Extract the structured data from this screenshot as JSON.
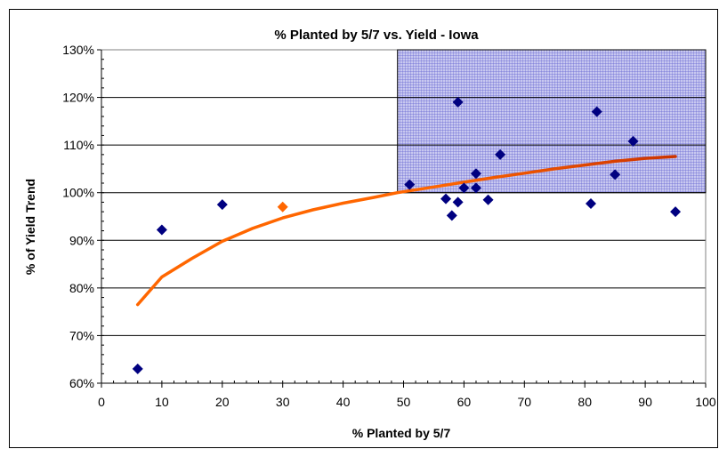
{
  "chart_data": {
    "type": "scatter",
    "title": "% Planted by 5/7 vs. Yield - Iowa",
    "xlabel": "% Planted by 5/7",
    "ylabel": "% of Yield Trend",
    "xlim": [
      0,
      100
    ],
    "ylim": [
      0.6,
      1.3
    ],
    "x_ticks": [
      "0",
      "10",
      "20",
      "30",
      "40",
      "50",
      "60",
      "70",
      "80",
      "90",
      "100"
    ],
    "y_ticks": [
      "60%",
      "70%",
      "80%",
      "90%",
      "100%",
      "110%",
      "120%",
      "130%"
    ],
    "grid": "horizontal",
    "legend": "none",
    "highlight_region": {
      "x": [
        49,
        100
      ],
      "y": [
        1.0,
        1.3
      ],
      "color": "#3333cc"
    },
    "series": [
      {
        "color": "#000080",
        "marker": "diamond",
        "points": [
          [
            6,
            0.63
          ],
          [
            10,
            0.922
          ],
          [
            20,
            0.975
          ],
          [
            51,
            1.017
          ],
          [
            57,
            0.987
          ],
          [
            58,
            0.952
          ],
          [
            59,
            1.19
          ],
          [
            59,
            0.98
          ],
          [
            60,
            1.01
          ],
          [
            62,
            1.04
          ],
          [
            62,
            1.01
          ],
          [
            64,
            0.985
          ],
          [
            66,
            1.08
          ],
          [
            81,
            0.977
          ],
          [
            82,
            1.17
          ],
          [
            85,
            1.038
          ],
          [
            88,
            1.108
          ],
          [
            95,
            0.96
          ]
        ]
      },
      {
        "color": "#ff6600",
        "marker": "diamond",
        "points": [
          [
            30,
            0.97
          ]
        ]
      }
    ],
    "trendline": {
      "type": "logarithmic",
      "x_range": [
        6,
        95
      ],
      "points": [
        [
          6,
          0.765
        ],
        [
          10,
          0.823
        ],
        [
          15,
          0.862
        ],
        [
          20,
          0.898
        ],
        [
          25,
          0.925
        ],
        [
          30,
          0.947
        ],
        [
          35,
          0.964
        ],
        [
          40,
          0.978
        ],
        [
          45,
          0.99
        ],
        [
          49,
          1.0
        ],
        [
          55,
          1.012
        ],
        [
          60,
          1.022
        ],
        [
          65,
          1.032
        ],
        [
          70,
          1.041
        ],
        [
          75,
          1.05
        ],
        [
          80,
          1.058
        ],
        [
          85,
          1.066
        ],
        [
          90,
          1.072
        ],
        [
          95,
          1.076
        ]
      ],
      "colors": [
        "#ff6600",
        "#cc3300"
      ]
    }
  }
}
